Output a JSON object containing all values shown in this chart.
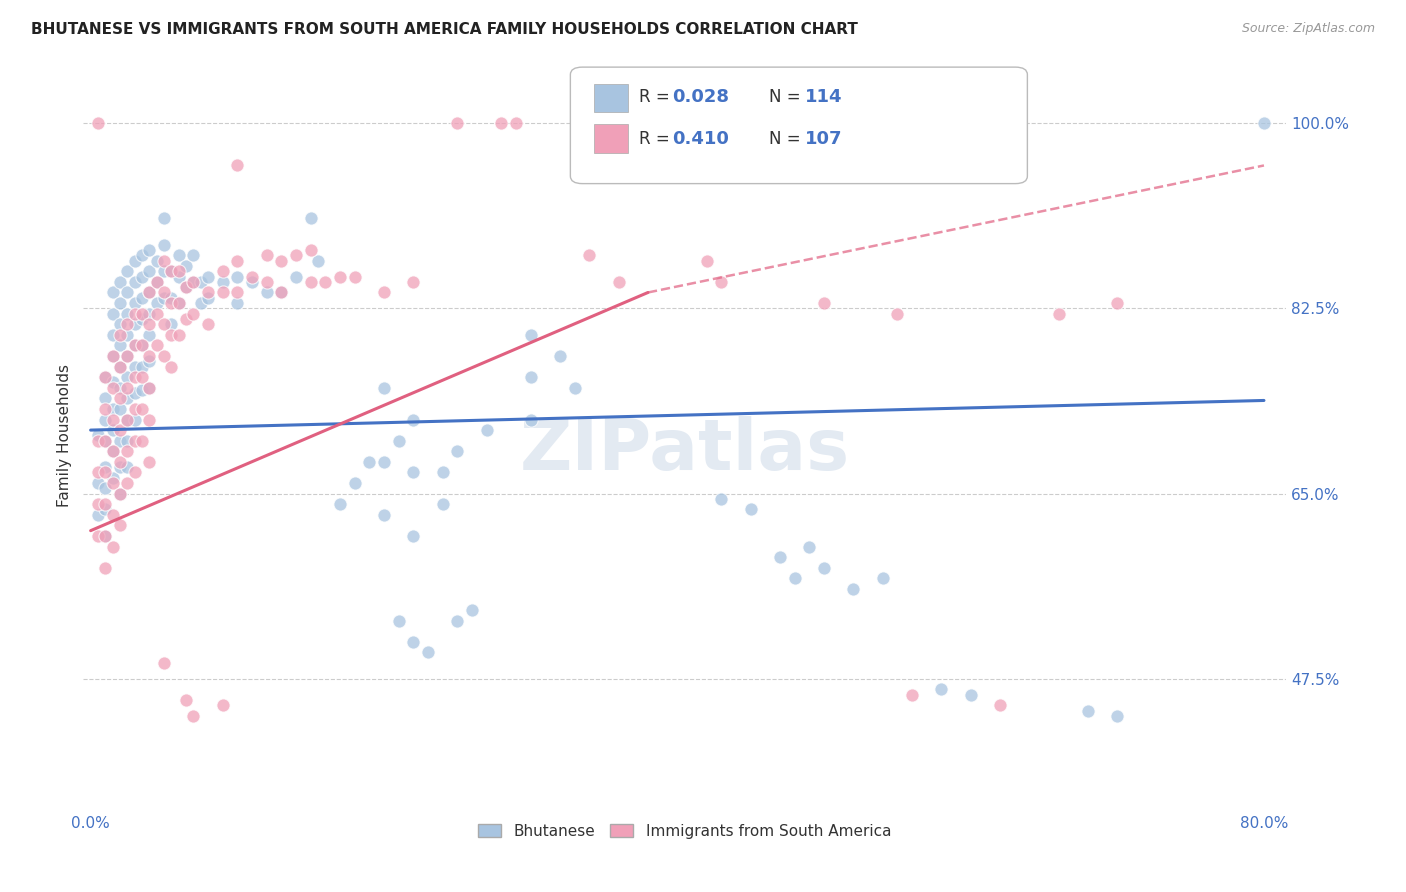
{
  "title": "BHUTANESE VS IMMIGRANTS FROM SOUTH AMERICA FAMILY HOUSEHOLDS CORRELATION CHART",
  "source": "Source: ZipAtlas.com",
  "ylabel": "Family Households",
  "legend_label1": "Bhutanese",
  "legend_label2": "Immigrants from South America",
  "R1": 0.028,
  "N1": 114,
  "R2": 0.41,
  "N2": 107,
  "color_blue": "#a8c4e0",
  "color_pink": "#f0a0b8",
  "line_blue": "#4472c4",
  "line_pink": "#e06080",
  "watermark": "ZIPatlas",
  "x_min": 0.0,
  "x_max": 0.8,
  "y_min": 0.35,
  "y_max": 1.06,
  "ytick_vals": [
    1.0,
    0.825,
    0.65,
    0.475
  ],
  "ytick_labels": [
    "100.0%",
    "82.5%",
    "65.0%",
    "47.5%"
  ],
  "blue_line": [
    0.0,
    0.71,
    0.8,
    0.738
  ],
  "pink_line_solid": [
    0.0,
    0.615,
    0.38,
    0.84
  ],
  "pink_line_dashed": [
    0.38,
    0.84,
    0.8,
    0.96
  ],
  "blue_points": [
    [
      0.005,
      0.705
    ],
    [
      0.005,
      0.66
    ],
    [
      0.005,
      0.63
    ],
    [
      0.01,
      0.76
    ],
    [
      0.01,
      0.74
    ],
    [
      0.01,
      0.72
    ],
    [
      0.01,
      0.7
    ],
    [
      0.01,
      0.675
    ],
    [
      0.01,
      0.655
    ],
    [
      0.01,
      0.635
    ],
    [
      0.01,
      0.61
    ],
    [
      0.015,
      0.84
    ],
    [
      0.015,
      0.82
    ],
    [
      0.015,
      0.8
    ],
    [
      0.015,
      0.78
    ],
    [
      0.015,
      0.755
    ],
    [
      0.015,
      0.73
    ],
    [
      0.015,
      0.71
    ],
    [
      0.015,
      0.69
    ],
    [
      0.015,
      0.665
    ],
    [
      0.02,
      0.85
    ],
    [
      0.02,
      0.83
    ],
    [
      0.02,
      0.81
    ],
    [
      0.02,
      0.79
    ],
    [
      0.02,
      0.77
    ],
    [
      0.02,
      0.75
    ],
    [
      0.02,
      0.73
    ],
    [
      0.02,
      0.7
    ],
    [
      0.02,
      0.675
    ],
    [
      0.02,
      0.65
    ],
    [
      0.025,
      0.86
    ],
    [
      0.025,
      0.84
    ],
    [
      0.025,
      0.82
    ],
    [
      0.025,
      0.8
    ],
    [
      0.025,
      0.78
    ],
    [
      0.025,
      0.76
    ],
    [
      0.025,
      0.74
    ],
    [
      0.025,
      0.72
    ],
    [
      0.025,
      0.7
    ],
    [
      0.025,
      0.675
    ],
    [
      0.03,
      0.87
    ],
    [
      0.03,
      0.85
    ],
    [
      0.03,
      0.83
    ],
    [
      0.03,
      0.81
    ],
    [
      0.03,
      0.79
    ],
    [
      0.03,
      0.77
    ],
    [
      0.03,
      0.745
    ],
    [
      0.03,
      0.72
    ],
    [
      0.035,
      0.875
    ],
    [
      0.035,
      0.855
    ],
    [
      0.035,
      0.835
    ],
    [
      0.035,
      0.815
    ],
    [
      0.035,
      0.79
    ],
    [
      0.035,
      0.77
    ],
    [
      0.035,
      0.748
    ],
    [
      0.04,
      0.88
    ],
    [
      0.04,
      0.86
    ],
    [
      0.04,
      0.84
    ],
    [
      0.04,
      0.82
    ],
    [
      0.04,
      0.8
    ],
    [
      0.04,
      0.775
    ],
    [
      0.04,
      0.75
    ],
    [
      0.045,
      0.87
    ],
    [
      0.045,
      0.85
    ],
    [
      0.045,
      0.83
    ],
    [
      0.05,
      0.91
    ],
    [
      0.05,
      0.885
    ],
    [
      0.05,
      0.86
    ],
    [
      0.05,
      0.835
    ],
    [
      0.055,
      0.86
    ],
    [
      0.055,
      0.835
    ],
    [
      0.055,
      0.81
    ],
    [
      0.06,
      0.875
    ],
    [
      0.06,
      0.855
    ],
    [
      0.06,
      0.83
    ],
    [
      0.065,
      0.865
    ],
    [
      0.065,
      0.845
    ],
    [
      0.07,
      0.875
    ],
    [
      0.07,
      0.85
    ],
    [
      0.075,
      0.85
    ],
    [
      0.075,
      0.83
    ],
    [
      0.08,
      0.855
    ],
    [
      0.08,
      0.835
    ],
    [
      0.09,
      0.85
    ],
    [
      0.1,
      0.855
    ],
    [
      0.1,
      0.83
    ],
    [
      0.11,
      0.85
    ],
    [
      0.12,
      0.84
    ],
    [
      0.13,
      0.84
    ],
    [
      0.14,
      0.855
    ],
    [
      0.15,
      0.91
    ],
    [
      0.155,
      0.87
    ],
    [
      0.17,
      0.64
    ],
    [
      0.18,
      0.66
    ],
    [
      0.19,
      0.68
    ],
    [
      0.2,
      0.75
    ],
    [
      0.2,
      0.68
    ],
    [
      0.2,
      0.63
    ],
    [
      0.21,
      0.7
    ],
    [
      0.22,
      0.72
    ],
    [
      0.22,
      0.67
    ],
    [
      0.22,
      0.61
    ],
    [
      0.24,
      0.67
    ],
    [
      0.24,
      0.64
    ],
    [
      0.25,
      0.69
    ],
    [
      0.27,
      0.71
    ],
    [
      0.3,
      0.8
    ],
    [
      0.3,
      0.76
    ],
    [
      0.3,
      0.72
    ],
    [
      0.32,
      0.78
    ],
    [
      0.33,
      0.75
    ],
    [
      0.21,
      0.53
    ],
    [
      0.22,
      0.51
    ],
    [
      0.23,
      0.5
    ],
    [
      0.25,
      0.53
    ],
    [
      0.26,
      0.54
    ],
    [
      0.43,
      0.645
    ],
    [
      0.45,
      0.635
    ],
    [
      0.47,
      0.59
    ],
    [
      0.48,
      0.57
    ],
    [
      0.49,
      0.6
    ],
    [
      0.5,
      0.58
    ],
    [
      0.52,
      0.56
    ],
    [
      0.54,
      0.57
    ],
    [
      0.58,
      0.465
    ],
    [
      0.6,
      0.46
    ],
    [
      0.68,
      0.445
    ],
    [
      0.7,
      0.44
    ],
    [
      0.8,
      1.0
    ]
  ],
  "pink_points": [
    [
      0.005,
      0.7
    ],
    [
      0.005,
      0.67
    ],
    [
      0.005,
      0.64
    ],
    [
      0.005,
      0.61
    ],
    [
      0.01,
      0.76
    ],
    [
      0.01,
      0.73
    ],
    [
      0.01,
      0.7
    ],
    [
      0.01,
      0.67
    ],
    [
      0.01,
      0.64
    ],
    [
      0.01,
      0.61
    ],
    [
      0.01,
      0.58
    ],
    [
      0.015,
      0.78
    ],
    [
      0.015,
      0.75
    ],
    [
      0.015,
      0.72
    ],
    [
      0.015,
      0.69
    ],
    [
      0.015,
      0.66
    ],
    [
      0.015,
      0.63
    ],
    [
      0.015,
      0.6
    ],
    [
      0.02,
      0.8
    ],
    [
      0.02,
      0.77
    ],
    [
      0.02,
      0.74
    ],
    [
      0.02,
      0.71
    ],
    [
      0.02,
      0.68
    ],
    [
      0.02,
      0.65
    ],
    [
      0.02,
      0.62
    ],
    [
      0.025,
      0.81
    ],
    [
      0.025,
      0.78
    ],
    [
      0.025,
      0.75
    ],
    [
      0.025,
      0.72
    ],
    [
      0.025,
      0.69
    ],
    [
      0.025,
      0.66
    ],
    [
      0.03,
      0.82
    ],
    [
      0.03,
      0.79
    ],
    [
      0.03,
      0.76
    ],
    [
      0.03,
      0.73
    ],
    [
      0.03,
      0.7
    ],
    [
      0.03,
      0.67
    ],
    [
      0.035,
      0.82
    ],
    [
      0.035,
      0.79
    ],
    [
      0.035,
      0.76
    ],
    [
      0.035,
      0.73
    ],
    [
      0.035,
      0.7
    ],
    [
      0.04,
      0.84
    ],
    [
      0.04,
      0.81
    ],
    [
      0.04,
      0.78
    ],
    [
      0.04,
      0.75
    ],
    [
      0.04,
      0.72
    ],
    [
      0.04,
      0.68
    ],
    [
      0.045,
      0.85
    ],
    [
      0.045,
      0.82
    ],
    [
      0.045,
      0.79
    ],
    [
      0.05,
      0.87
    ],
    [
      0.05,
      0.84
    ],
    [
      0.05,
      0.81
    ],
    [
      0.05,
      0.78
    ],
    [
      0.055,
      0.86
    ],
    [
      0.055,
      0.83
    ],
    [
      0.055,
      0.8
    ],
    [
      0.055,
      0.77
    ],
    [
      0.06,
      0.86
    ],
    [
      0.06,
      0.83
    ],
    [
      0.06,
      0.8
    ],
    [
      0.065,
      0.845
    ],
    [
      0.065,
      0.815
    ],
    [
      0.07,
      0.85
    ],
    [
      0.07,
      0.82
    ],
    [
      0.08,
      0.84
    ],
    [
      0.08,
      0.81
    ],
    [
      0.09,
      0.86
    ],
    [
      0.09,
      0.84
    ],
    [
      0.1,
      0.96
    ],
    [
      0.1,
      0.87
    ],
    [
      0.1,
      0.84
    ],
    [
      0.11,
      0.855
    ],
    [
      0.12,
      0.875
    ],
    [
      0.12,
      0.85
    ],
    [
      0.13,
      0.87
    ],
    [
      0.13,
      0.84
    ],
    [
      0.14,
      0.875
    ],
    [
      0.15,
      0.88
    ],
    [
      0.15,
      0.85
    ],
    [
      0.16,
      0.85
    ],
    [
      0.17,
      0.855
    ],
    [
      0.18,
      0.855
    ],
    [
      0.2,
      0.84
    ],
    [
      0.22,
      0.85
    ],
    [
      0.25,
      1.0
    ],
    [
      0.28,
      1.0
    ],
    [
      0.34,
      0.875
    ],
    [
      0.36,
      0.85
    ],
    [
      0.42,
      0.87
    ],
    [
      0.43,
      0.85
    ],
    [
      0.5,
      0.83
    ],
    [
      0.55,
      0.82
    ],
    [
      0.7,
      0.83
    ],
    [
      0.05,
      0.49
    ],
    [
      0.065,
      0.455
    ],
    [
      0.07,
      0.44
    ],
    [
      0.09,
      0.45
    ],
    [
      0.56,
      0.46
    ],
    [
      0.62,
      0.45
    ],
    [
      0.005,
      1.0
    ],
    [
      0.29,
      1.0
    ],
    [
      0.66,
      0.82
    ]
  ]
}
